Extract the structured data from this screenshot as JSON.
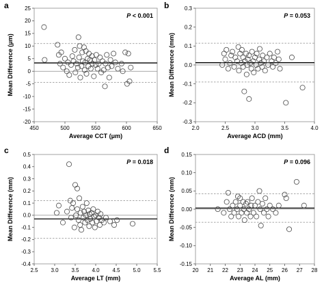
{
  "chart_data": [
    {
      "type": "scatter",
      "panel_label": "a",
      "xlabel": "Average CCT (μm)",
      "ylabel": "Mean Difference (μm)",
      "p_prefix": "P",
      "p_rest": " < 0.001",
      "xlim": [
        450,
        650
      ],
      "ylim": [
        -20,
        25
      ],
      "xticks": [
        "450",
        "500",
        "550",
        "600",
        "650"
      ],
      "yticks": [
        "-20",
        "-15",
        "-10",
        "-5",
        "0",
        "5",
        "10",
        "15",
        "20",
        "25"
      ],
      "mean_line": 3.3,
      "upper_loa": 11.0,
      "lower_loa": -4.4,
      "grid": false,
      "points": [
        [
          466,
          17.5
        ],
        [
          467,
          4.5
        ],
        [
          488,
          10.5
        ],
        [
          490,
          6.5
        ],
        [
          494,
          7.5
        ],
        [
          492,
          3.0
        ],
        [
          497,
          1.5
        ],
        [
          500,
          5.0
        ],
        [
          503,
          0.0
        ],
        [
          505,
          3.5
        ],
        [
          507,
          -1.5
        ],
        [
          510,
          2.5
        ],
        [
          512,
          6.0
        ],
        [
          514,
          4.0
        ],
        [
          516,
          8.5
        ],
        [
          517,
          -0.5
        ],
        [
          519,
          3.0
        ],
        [
          521,
          1.5
        ],
        [
          522,
          13.5
        ],
        [
          523,
          5.5
        ],
        [
          524,
          10.0
        ],
        [
          525,
          -2.5
        ],
        [
          527,
          2.0
        ],
        [
          528,
          7.5
        ],
        [
          529,
          4.0
        ],
        [
          531,
          9.5
        ],
        [
          532,
          0.5
        ],
        [
          533,
          3.5
        ],
        [
          534,
          8.0
        ],
        [
          535,
          -1.0
        ],
        [
          537,
          5.0
        ],
        [
          538,
          2.0
        ],
        [
          539,
          7.0
        ],
        [
          541,
          4.5
        ],
        [
          542,
          1.0
        ],
        [
          544,
          6.0
        ],
        [
          545,
          3.0
        ],
        [
          547,
          -2.0
        ],
        [
          548,
          4.5
        ],
        [
          550,
          2.5
        ],
        [
          551,
          6.5
        ],
        [
          553,
          1.0
        ],
        [
          555,
          3.0
        ],
        [
          557,
          5.5
        ],
        [
          559,
          -0.5
        ],
        [
          561,
          4.0
        ],
        [
          563,
          0.5
        ],
        [
          565,
          -6.0
        ],
        [
          566,
          3.0
        ],
        [
          568,
          6.5
        ],
        [
          570,
          1.5
        ],
        [
          572,
          -2.5
        ],
        [
          574,
          4.5
        ],
        [
          576,
          2.0
        ],
        [
          579,
          7.0
        ],
        [
          582,
          3.5
        ],
        [
          586,
          1.0
        ],
        [
          592,
          3.0
        ],
        [
          594,
          0.0
        ],
        [
          598,
          7.5
        ],
        [
          601,
          -5.0
        ],
        [
          603,
          7.0
        ],
        [
          605,
          -4.0
        ],
        [
          607,
          1.5
        ]
      ]
    },
    {
      "type": "scatter",
      "panel_label": "b",
      "xlabel": "Average ACD (mm)",
      "ylabel": "Mean Difference (mm)",
      "p_prefix": "P",
      "p_rest": " = 0.053",
      "xlim": [
        2.0,
        4.0
      ],
      "ylim": [
        -0.3,
        0.3
      ],
      "xticks": [
        "2.0",
        "2.5",
        "3.0",
        "3.5",
        "4.0"
      ],
      "yticks": [
        "-0.3",
        "-0.2",
        "-0.1",
        "0.0",
        "0.1",
        "0.2",
        "0.3"
      ],
      "mean_line": 0.012,
      "upper_loa": 0.115,
      "lower_loa": -0.09,
      "grid": false,
      "points": [
        [
          2.45,
          0.0
        ],
        [
          2.48,
          0.06
        ],
        [
          2.5,
          0.03
        ],
        [
          2.52,
          0.08
        ],
        [
          2.55,
          -0.02
        ],
        [
          2.58,
          0.01
        ],
        [
          2.6,
          0.05
        ],
        [
          2.62,
          0.07
        ],
        [
          2.65,
          -0.01
        ],
        [
          2.67,
          0.04
        ],
        [
          2.7,
          0.02
        ],
        [
          2.72,
          0.095
        ],
        [
          2.73,
          -0.03
        ],
        [
          2.75,
          0.06
        ],
        [
          2.77,
          0.01
        ],
        [
          2.78,
          0.08
        ],
        [
          2.8,
          -0.01
        ],
        [
          2.8,
          0.04
        ],
        [
          2.82,
          -0.14
        ],
        [
          2.83,
          0.02
        ],
        [
          2.85,
          0.06
        ],
        [
          2.86,
          -0.05
        ],
        [
          2.87,
          0.0
        ],
        [
          2.88,
          0.03
        ],
        [
          2.9,
          -0.18
        ],
        [
          2.9,
          0.05
        ],
        [
          2.92,
          0.01
        ],
        [
          2.94,
          -0.02
        ],
        [
          2.95,
          0.07
        ],
        [
          2.97,
          0.02
        ],
        [
          2.98,
          -0.04
        ],
        [
          3.0,
          0.04
        ],
        [
          3.02,
          0.0
        ],
        [
          3.03,
          0.06
        ],
        [
          3.05,
          -0.02
        ],
        [
          3.07,
          0.03
        ],
        [
          3.08,
          0.085
        ],
        [
          3.1,
          0.01
        ],
        [
          3.12,
          -0.01
        ],
        [
          3.13,
          0.05
        ],
        [
          3.15,
          0.02
        ],
        [
          3.17,
          -0.03
        ],
        [
          3.2,
          0.04
        ],
        [
          3.22,
          0.0
        ],
        [
          3.25,
          0.06
        ],
        [
          3.28,
          0.02
        ],
        [
          3.3,
          -0.01
        ],
        [
          3.32,
          0.04
        ],
        [
          3.35,
          0.01
        ],
        [
          3.38,
          0.07
        ],
        [
          3.4,
          0.03
        ],
        [
          3.42,
          -0.02
        ],
        [
          3.52,
          -0.2
        ],
        [
          3.62,
          0.04
        ],
        [
          3.8,
          -0.12
        ]
      ]
    },
    {
      "type": "scatter",
      "panel_label": "c",
      "xlabel": "Average LT (mm)",
      "ylabel": "Mean Difference (mm)",
      "p_prefix": "P",
      "p_rest": " = 0.018",
      "xlim": [
        2.5,
        5.5
      ],
      "ylim": [
        -0.4,
        0.5
      ],
      "xticks": [
        "2.5",
        "3.0",
        "3.5",
        "4.0",
        "4.5",
        "5.0",
        "5.5"
      ],
      "yticks": [
        "-0.4",
        "-0.3",
        "-0.2",
        "-0.1",
        "0.0",
        "0.1",
        "0.2",
        "0.3",
        "0.4",
        "0.5"
      ],
      "mean_line": -0.03,
      "upper_loa": 0.12,
      "lower_loa": -0.19,
      "grid": false,
      "points": [
        [
          3.05,
          0.02
        ],
        [
          3.1,
          0.08
        ],
        [
          3.2,
          -0.06
        ],
        [
          3.3,
          0.03
        ],
        [
          3.35,
          0.42
        ],
        [
          3.38,
          0.12
        ],
        [
          3.4,
          -0.02
        ],
        [
          3.42,
          0.06
        ],
        [
          3.45,
          0.1
        ],
        [
          3.48,
          -0.1
        ],
        [
          3.5,
          0.25
        ],
        [
          3.52,
          0.0
        ],
        [
          3.55,
          0.22
        ],
        [
          3.55,
          0.05
        ],
        [
          3.58,
          -0.04
        ],
        [
          3.6,
          0.14
        ],
        [
          3.62,
          -0.08
        ],
        [
          3.63,
          0.02
        ],
        [
          3.65,
          -0.12
        ],
        [
          3.68,
          0.07
        ],
        [
          3.7,
          -0.02
        ],
        [
          3.72,
          0.03
        ],
        [
          3.74,
          -0.06
        ],
        [
          3.76,
          0.0
        ],
        [
          3.78,
          0.1
        ],
        [
          3.8,
          -0.04
        ],
        [
          3.82,
          0.04
        ],
        [
          3.84,
          -0.09
        ],
        [
          3.85,
          0.01
        ],
        [
          3.87,
          -0.03
        ],
        [
          3.9,
          0.02
        ],
        [
          3.92,
          -0.06
        ],
        [
          3.94,
          0.05
        ],
        [
          3.96,
          -0.01
        ],
        [
          3.98,
          -0.1
        ],
        [
          4.0,
          0.0
        ],
        [
          4.02,
          -0.05
        ],
        [
          4.05,
          0.03
        ],
        [
          4.08,
          -0.02
        ],
        [
          4.1,
          -0.08
        ],
        [
          4.12,
          0.01
        ],
        [
          4.15,
          -0.04
        ],
        [
          4.2,
          -0.06
        ],
        [
          4.25,
          -0.02
        ],
        [
          4.35,
          -0.05
        ],
        [
          4.45,
          -0.08
        ],
        [
          4.52,
          -0.04
        ],
        [
          4.9,
          -0.07
        ]
      ]
    },
    {
      "type": "scatter",
      "panel_label": "d",
      "xlabel": "Average AL (mm)",
      "ylabel": "Mean Difference (mm)",
      "p_prefix": "P",
      "p_rest": " = 0.096",
      "xlim": [
        20,
        28
      ],
      "ylim": [
        -0.15,
        0.15
      ],
      "xticks": [
        "20",
        "21",
        "22",
        "23",
        "24",
        "25",
        "26",
        "27",
        "28"
      ],
      "yticks": [
        "-0.15",
        "-0.10",
        "-0.05",
        "0.00",
        "0.05",
        "0.10",
        "0.15"
      ],
      "mean_line": 0.003,
      "upper_loa": 0.042,
      "lower_loa": -0.036,
      "grid": false,
      "points": [
        [
          21.5,
          0.0
        ],
        [
          21.9,
          -0.01
        ],
        [
          22.1,
          0.02
        ],
        [
          22.2,
          0.045
        ],
        [
          22.3,
          0.0
        ],
        [
          22.4,
          -0.02
        ],
        [
          22.5,
          0.01
        ],
        [
          22.6,
          -0.01
        ],
        [
          22.7,
          0.02
        ],
        [
          22.8,
          0.0
        ],
        [
          22.85,
          0.035
        ],
        [
          22.9,
          -0.02
        ],
        [
          23.0,
          0.01
        ],
        [
          23.0,
          0.03
        ],
        [
          23.1,
          -0.01
        ],
        [
          23.2,
          0.02
        ],
        [
          23.25,
          0.0
        ],
        [
          23.3,
          -0.03
        ],
        [
          23.4,
          0.015
        ],
        [
          23.45,
          -0.01
        ],
        [
          23.5,
          0.02
        ],
        [
          23.6,
          0.0
        ],
        [
          23.7,
          -0.02
        ],
        [
          23.75,
          0.01
        ],
        [
          23.8,
          0.03
        ],
        [
          23.9,
          -0.01
        ],
        [
          24.0,
          0.01
        ],
        [
          24.1,
          -0.02
        ],
        [
          24.2,
          0.02
        ],
        [
          24.3,
          0.05
        ],
        [
          24.35,
          0.0
        ],
        [
          24.4,
          -0.045
        ],
        [
          24.5,
          0.015
        ],
        [
          24.6,
          -0.01
        ],
        [
          24.7,
          0.03
        ],
        [
          24.8,
          0.0
        ],
        [
          24.9,
          -0.02
        ],
        [
          25.0,
          0.01
        ],
        [
          25.2,
          0.0
        ],
        [
          25.4,
          -0.01
        ],
        [
          25.6,
          0.01
        ],
        [
          26.0,
          0.04
        ],
        [
          26.1,
          0.03
        ],
        [
          26.3,
          -0.055
        ],
        [
          26.8,
          0.075
        ],
        [
          27.3,
          0.01
        ]
      ]
    }
  ]
}
